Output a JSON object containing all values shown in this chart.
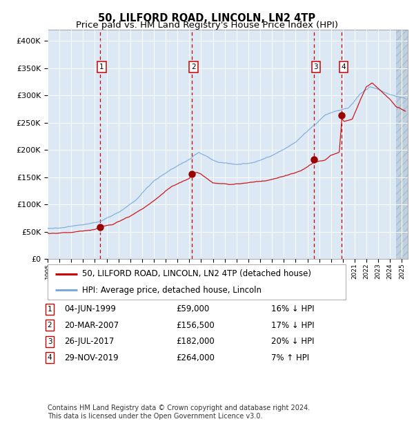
{
  "title": "50, LILFORD ROAD, LINCOLN, LN2 4TP",
  "subtitle": "Price paid vs. HM Land Registry's House Price Index (HPI)",
  "legend_line1": "50, LILFORD ROAD, LINCOLN, LN2 4TP (detached house)",
  "legend_line2": "HPI: Average price, detached house, Lincoln",
  "footer_line1": "Contains HM Land Registry data © Crown copyright and database right 2024.",
  "footer_line2": "This data is licensed under the Open Government Licence v3.0.",
  "transactions": [
    {
      "num": 1,
      "date": "04-JUN-1999",
      "price": 59000,
      "price_str": "£59,000",
      "hpi_diff": "16% ↓ HPI",
      "year": 1999.43
    },
    {
      "num": 2,
      "date": "20-MAR-2007",
      "price": 156500,
      "price_str": "£156,500",
      "hpi_diff": "17% ↓ HPI",
      "year": 2007.22
    },
    {
      "num": 3,
      "date": "26-JUL-2017",
      "price": 182000,
      "price_str": "£182,000",
      "hpi_diff": "20% ↓ HPI",
      "year": 2017.57
    },
    {
      "num": 4,
      "date": "29-NOV-2019",
      "price": 264000,
      "price_str": "£264,000",
      "hpi_diff": "7% ↑ HPI",
      "year": 2019.91
    }
  ],
  "ylim": [
    0,
    420000
  ],
  "xlim_start": 1995.0,
  "xlim_end": 2025.5,
  "background_color": "#ffffff",
  "plot_bg_color": "#dce9f5",
  "hatch_bg_color": "#c0d0e0",
  "grid_color": "#ffffff",
  "red_line_color": "#cc0000",
  "blue_line_color": "#7aaadd",
  "dashed_line_color": "#cc0000",
  "marker_color": "#990000",
  "transaction_box_color": "#cc0000",
  "title_fontsize": 10.5,
  "subtitle_fontsize": 9.5,
  "axis_fontsize": 8,
  "legend_fontsize": 8.5,
  "table_fontsize": 8.5,
  "footer_fontsize": 7
}
